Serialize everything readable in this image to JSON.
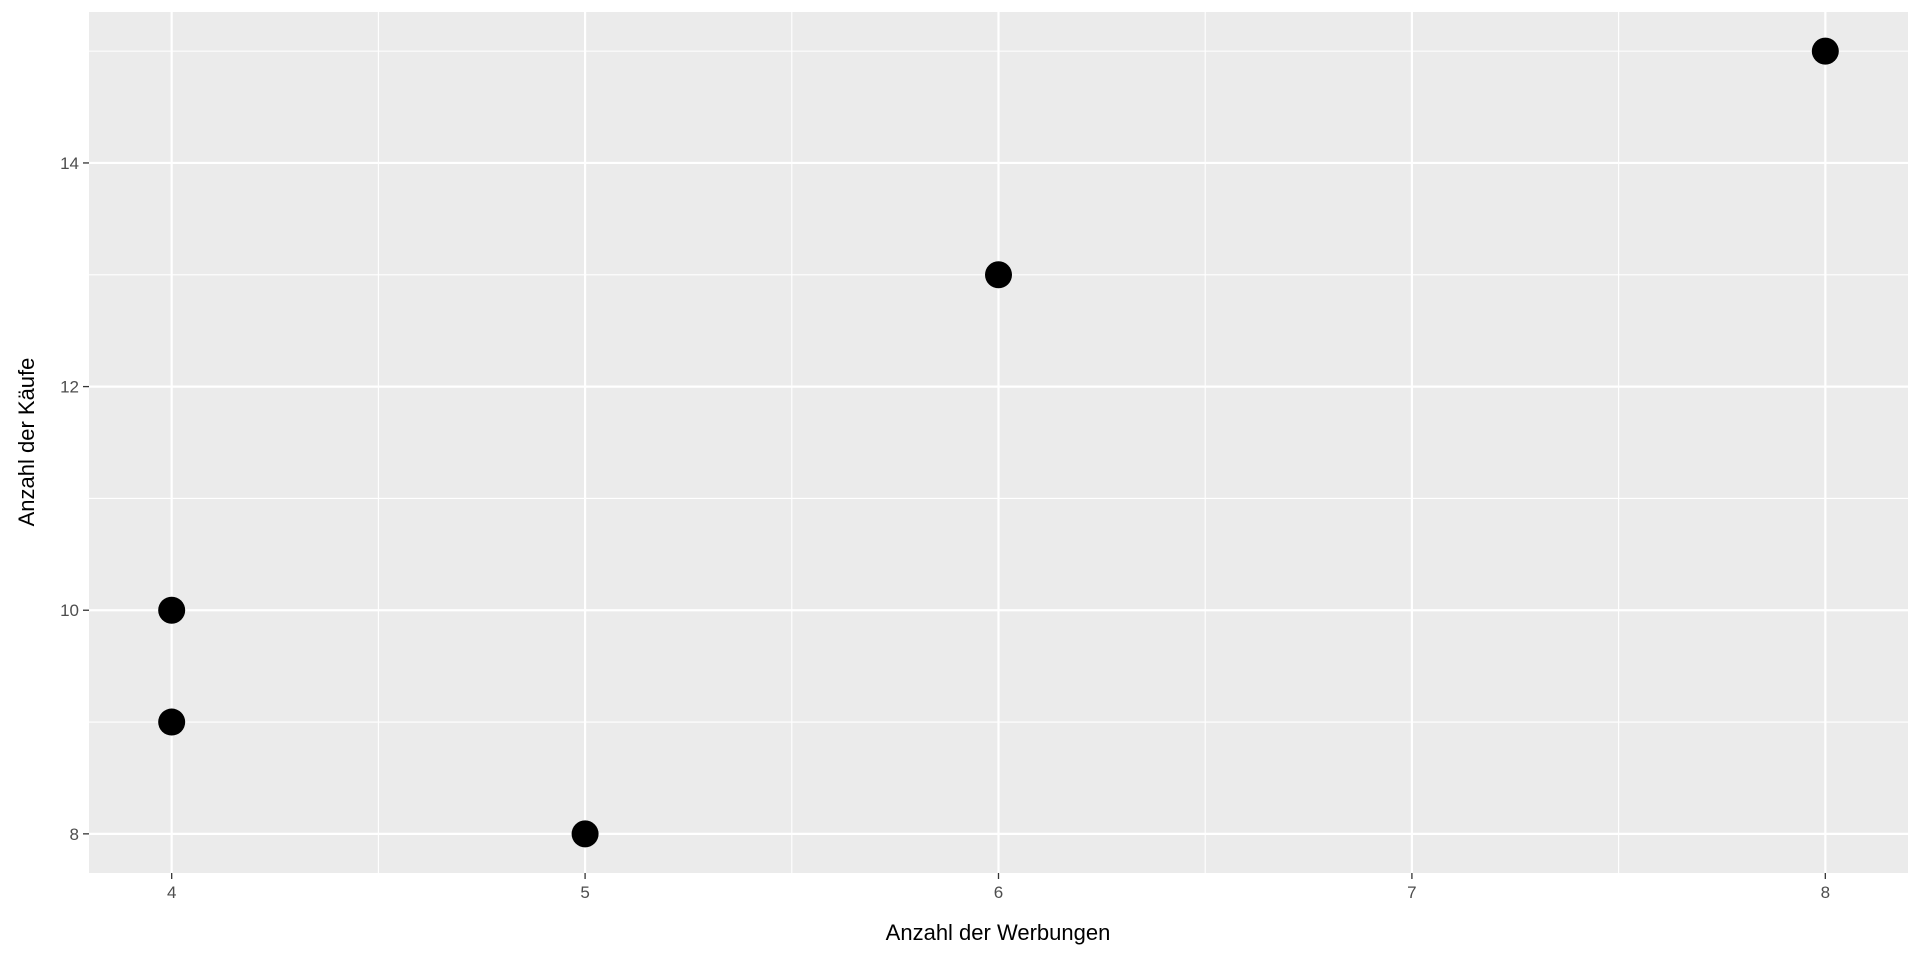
{
  "chart_data": {
    "type": "scatter",
    "title": "",
    "xlabel": "Anzahl der Werbungen",
    "ylabel": "Anzahl der Käufe",
    "xlim": [
      3.8,
      8.2
    ],
    "ylim": [
      7.65,
      15.35
    ],
    "x_ticks": [
      "4",
      "5",
      "6",
      "7",
      "8"
    ],
    "y_ticks": [
      "8",
      "10",
      "12",
      "14"
    ],
    "grid": true,
    "points": [
      {
        "x": 4,
        "y": 10
      },
      {
        "x": 4,
        "y": 9
      },
      {
        "x": 5,
        "y": 8
      },
      {
        "x": 6,
        "y": 13
      },
      {
        "x": 8,
        "y": 15
      }
    ],
    "colors": {
      "panel": "#EBEBEB",
      "grid": "#FFFFFF",
      "point": "#000000"
    }
  }
}
